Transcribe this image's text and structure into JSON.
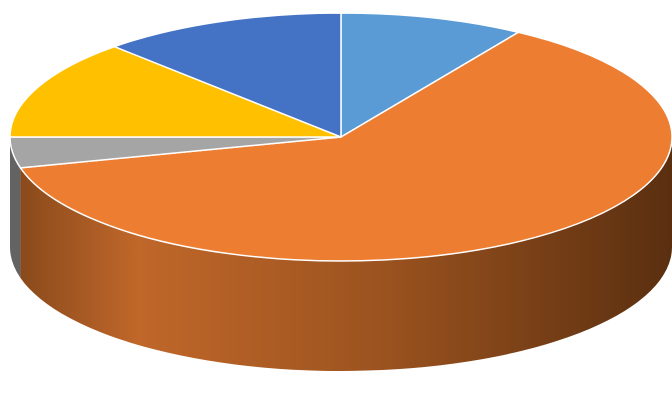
{
  "chart_data": {
    "type": "pie",
    "style": "3d",
    "title": "",
    "legend": "none",
    "start": "top, clockwise",
    "slices": [
      {
        "value": 9.0,
        "color": "#5B9BD5"
      },
      {
        "value": 62.0,
        "color": "#ED7D31"
      },
      {
        "value": 4.0,
        "color": "#A5A5A5"
      },
      {
        "value": 13.0,
        "color": "#FFC000"
      },
      {
        "value": 12.0,
        "color": "#4472C4"
      }
    ]
  }
}
